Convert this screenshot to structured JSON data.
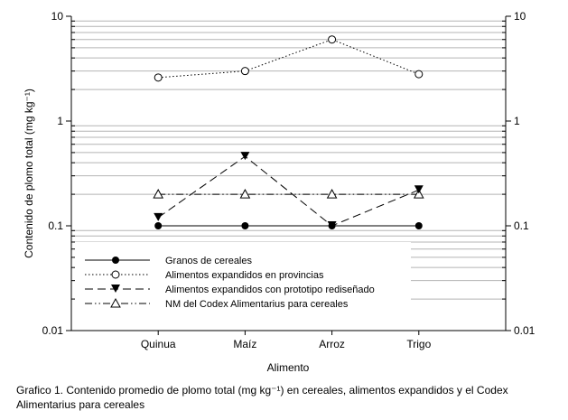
{
  "chart_data": {
    "type": "line",
    "xlabel": "Alimento",
    "ylabel": "Contenido de plomo total (mg kg⁻¹)",
    "yscale": "log",
    "ylim": [
      0.01,
      10
    ],
    "yticks": [
      "0.01",
      "0.1",
      "1",
      "10"
    ],
    "categories": [
      "Quinua",
      "Maíz",
      "Arroz",
      "Trigo"
    ],
    "grid": "horizontal minor gridlines",
    "legend_position": "bottom-left",
    "series": [
      {
        "name": "Granos de cereales",
        "values": [
          0.1,
          0.1,
          0.1,
          0.1
        ],
        "marker": "filled-circle",
        "line": "solid"
      },
      {
        "name": "Alimentos expandidos en provincias",
        "values": [
          2.6,
          3.0,
          6.0,
          2.8
        ],
        "marker": "open-circle",
        "line": "dotted"
      },
      {
        "name": "Alimentos expandidos con prototipo rediseñado",
        "values": [
          0.12,
          0.46,
          0.1,
          0.22
        ],
        "marker": "filled-triangle-down",
        "line": "dashed"
      },
      {
        "name": "NM del Codex Alimentarius para cereales",
        "values": [
          0.2,
          0.2,
          0.2,
          0.2
        ],
        "marker": "open-triangle-up",
        "line": "dash-dot-dot"
      }
    ]
  },
  "caption": "Grafico 1. Contenido promedio de plomo total (mg kg⁻¹) en cereales, alimentos expandidos y el Codex Alimentarius para cereales"
}
